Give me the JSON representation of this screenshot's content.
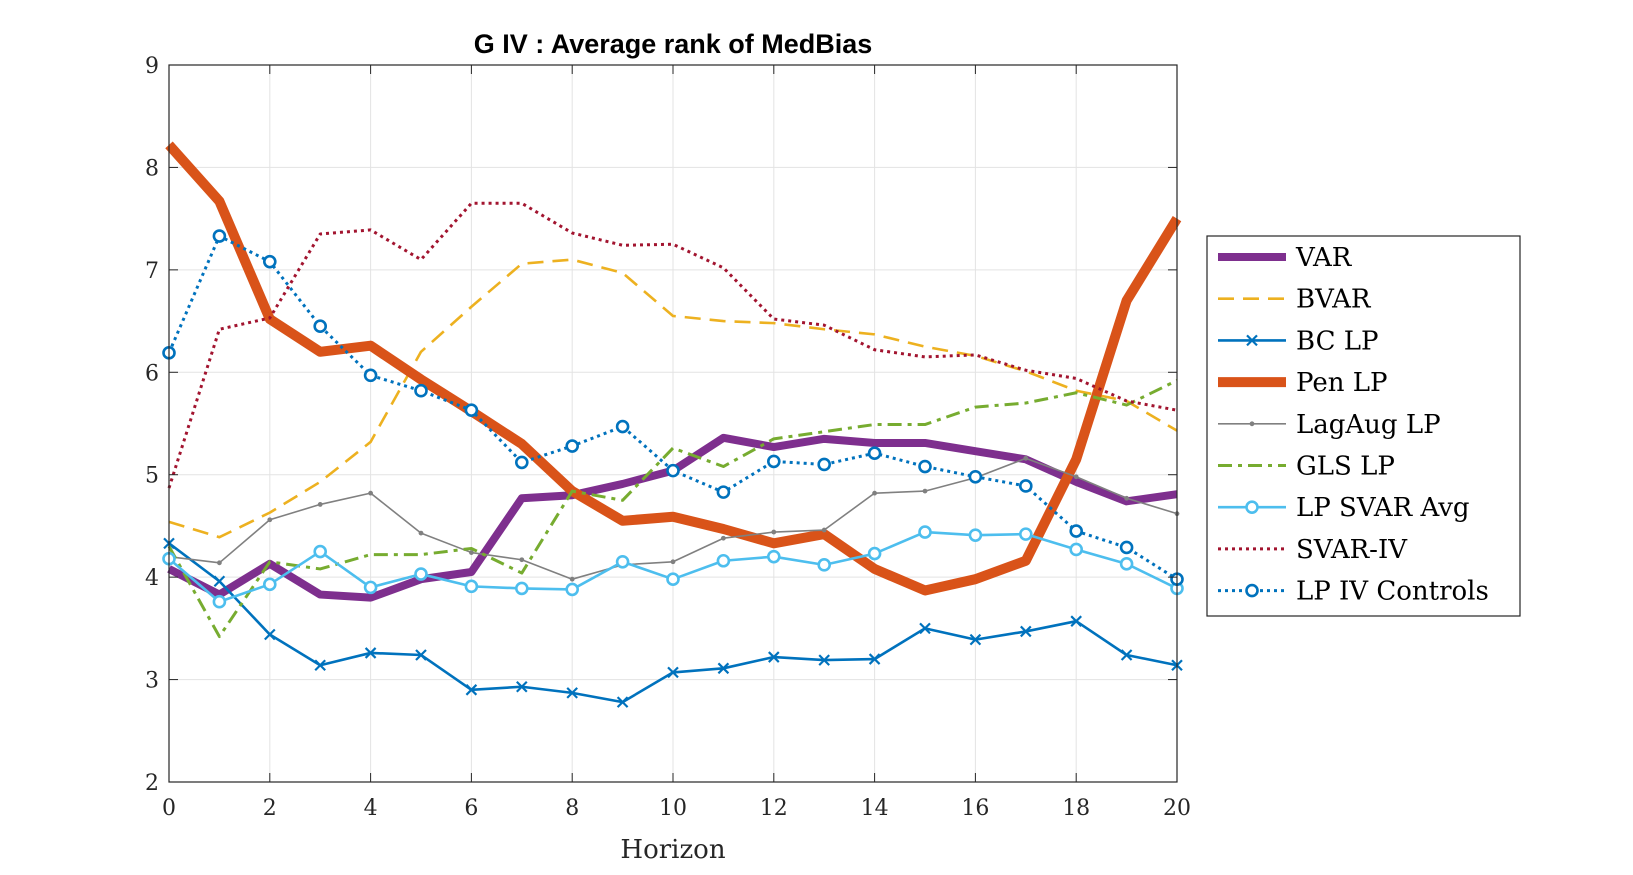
{
  "chart_data": {
    "type": "line",
    "title": "G IV : Average rank of MedBias",
    "xlabel": "Horizon",
    "ylabel": "",
    "xlim": [
      0,
      20
    ],
    "ylim": [
      2,
      9
    ],
    "xticks": [
      "0",
      "2",
      "4",
      "6",
      "8",
      "10",
      "12",
      "14",
      "16",
      "18",
      "20"
    ],
    "yticks": [
      "2",
      "3",
      "4",
      "5",
      "6",
      "7",
      "8",
      "9"
    ],
    "grid": true,
    "legend_position": "right",
    "x": [
      0,
      1,
      2,
      3,
      4,
      5,
      6,
      7,
      8,
      9,
      10,
      11,
      12,
      13,
      14,
      15,
      16,
      17,
      18,
      19,
      20
    ],
    "series": [
      {
        "name": "VAR",
        "color": "#7e2f8e",
        "style": "solid-thick",
        "values": [
          4.08,
          3.83,
          4.13,
          3.83,
          3.8,
          3.98,
          4.05,
          4.77,
          4.8,
          4.91,
          5.04,
          5.36,
          5.27,
          5.35,
          5.31,
          5.31,
          5.23,
          5.15,
          4.93,
          4.74,
          4.81
        ]
      },
      {
        "name": "BVAR",
        "color": "#edb120",
        "style": "dashed",
        "values": [
          4.54,
          4.39,
          4.63,
          4.93,
          5.32,
          6.2,
          6.64,
          7.06,
          7.1,
          6.97,
          6.55,
          6.5,
          6.48,
          6.42,
          6.37,
          6.25,
          6.16,
          6.01,
          5.82,
          5.72,
          5.43
        ]
      },
      {
        "name": "BC LP",
        "color": "#0072bd",
        "style": "solid-x",
        "values": [
          4.33,
          3.96,
          3.44,
          3.14,
          3.26,
          3.24,
          2.9,
          2.93,
          2.87,
          2.78,
          3.07,
          3.11,
          3.22,
          3.19,
          3.2,
          3.5,
          3.39,
          3.47,
          3.57,
          3.24,
          3.14
        ]
      },
      {
        "name": "Pen LP",
        "color": "#d95319",
        "style": "solid-xthick",
        "values": [
          8.22,
          7.67,
          6.52,
          6.2,
          6.26,
          5.93,
          5.62,
          5.3,
          4.84,
          4.55,
          4.59,
          4.47,
          4.33,
          4.42,
          4.08,
          3.87,
          3.98,
          4.16,
          5.15,
          6.7,
          7.5
        ]
      },
      {
        "name": "LagAug LP",
        "color": "#808080",
        "style": "solid-dot",
        "values": [
          4.2,
          4.14,
          4.56,
          4.71,
          4.82,
          4.43,
          4.24,
          4.17,
          3.98,
          4.12,
          4.15,
          4.38,
          4.44,
          4.46,
          4.82,
          4.84,
          4.97,
          5.16,
          4.98,
          4.77,
          4.62
        ]
      },
      {
        "name": "GLS LP",
        "color": "#77ac30",
        "style": "dashdot",
        "values": [
          4.3,
          3.42,
          4.15,
          4.08,
          4.22,
          4.22,
          4.28,
          4.04,
          4.84,
          4.75,
          5.26,
          5.08,
          5.35,
          5.42,
          5.49,
          5.49,
          5.66,
          5.7,
          5.8,
          5.68,
          5.92
        ]
      },
      {
        "name": "LP SVAR Avg",
        "color": "#4dbeee",
        "style": "solid-o",
        "values": [
          4.18,
          3.76,
          3.93,
          4.25,
          3.9,
          4.03,
          3.91,
          3.89,
          3.88,
          4.15,
          3.98,
          4.16,
          4.2,
          4.12,
          4.23,
          4.44,
          4.41,
          4.42,
          4.27,
          4.13,
          3.89
        ]
      },
      {
        "name": "SVAR-IV",
        "color": "#a2142f",
        "style": "dotted",
        "values": [
          4.87,
          6.42,
          6.53,
          7.35,
          7.39,
          7.1,
          7.65,
          7.65,
          7.36,
          7.24,
          7.25,
          7.02,
          6.52,
          6.46,
          6.22,
          6.15,
          6.17,
          6.02,
          5.94,
          5.72,
          5.63
        ]
      },
      {
        "name": "LP IV Controls",
        "color": "#0072bd",
        "style": "dotted-o",
        "values": [
          6.19,
          7.33,
          7.08,
          6.45,
          5.97,
          5.82,
          5.63,
          5.12,
          5.28,
          5.47,
          5.04,
          4.83,
          5.13,
          5.1,
          5.21,
          5.08,
          4.98,
          4.89,
          4.45,
          4.29,
          3.98
        ]
      }
    ]
  }
}
